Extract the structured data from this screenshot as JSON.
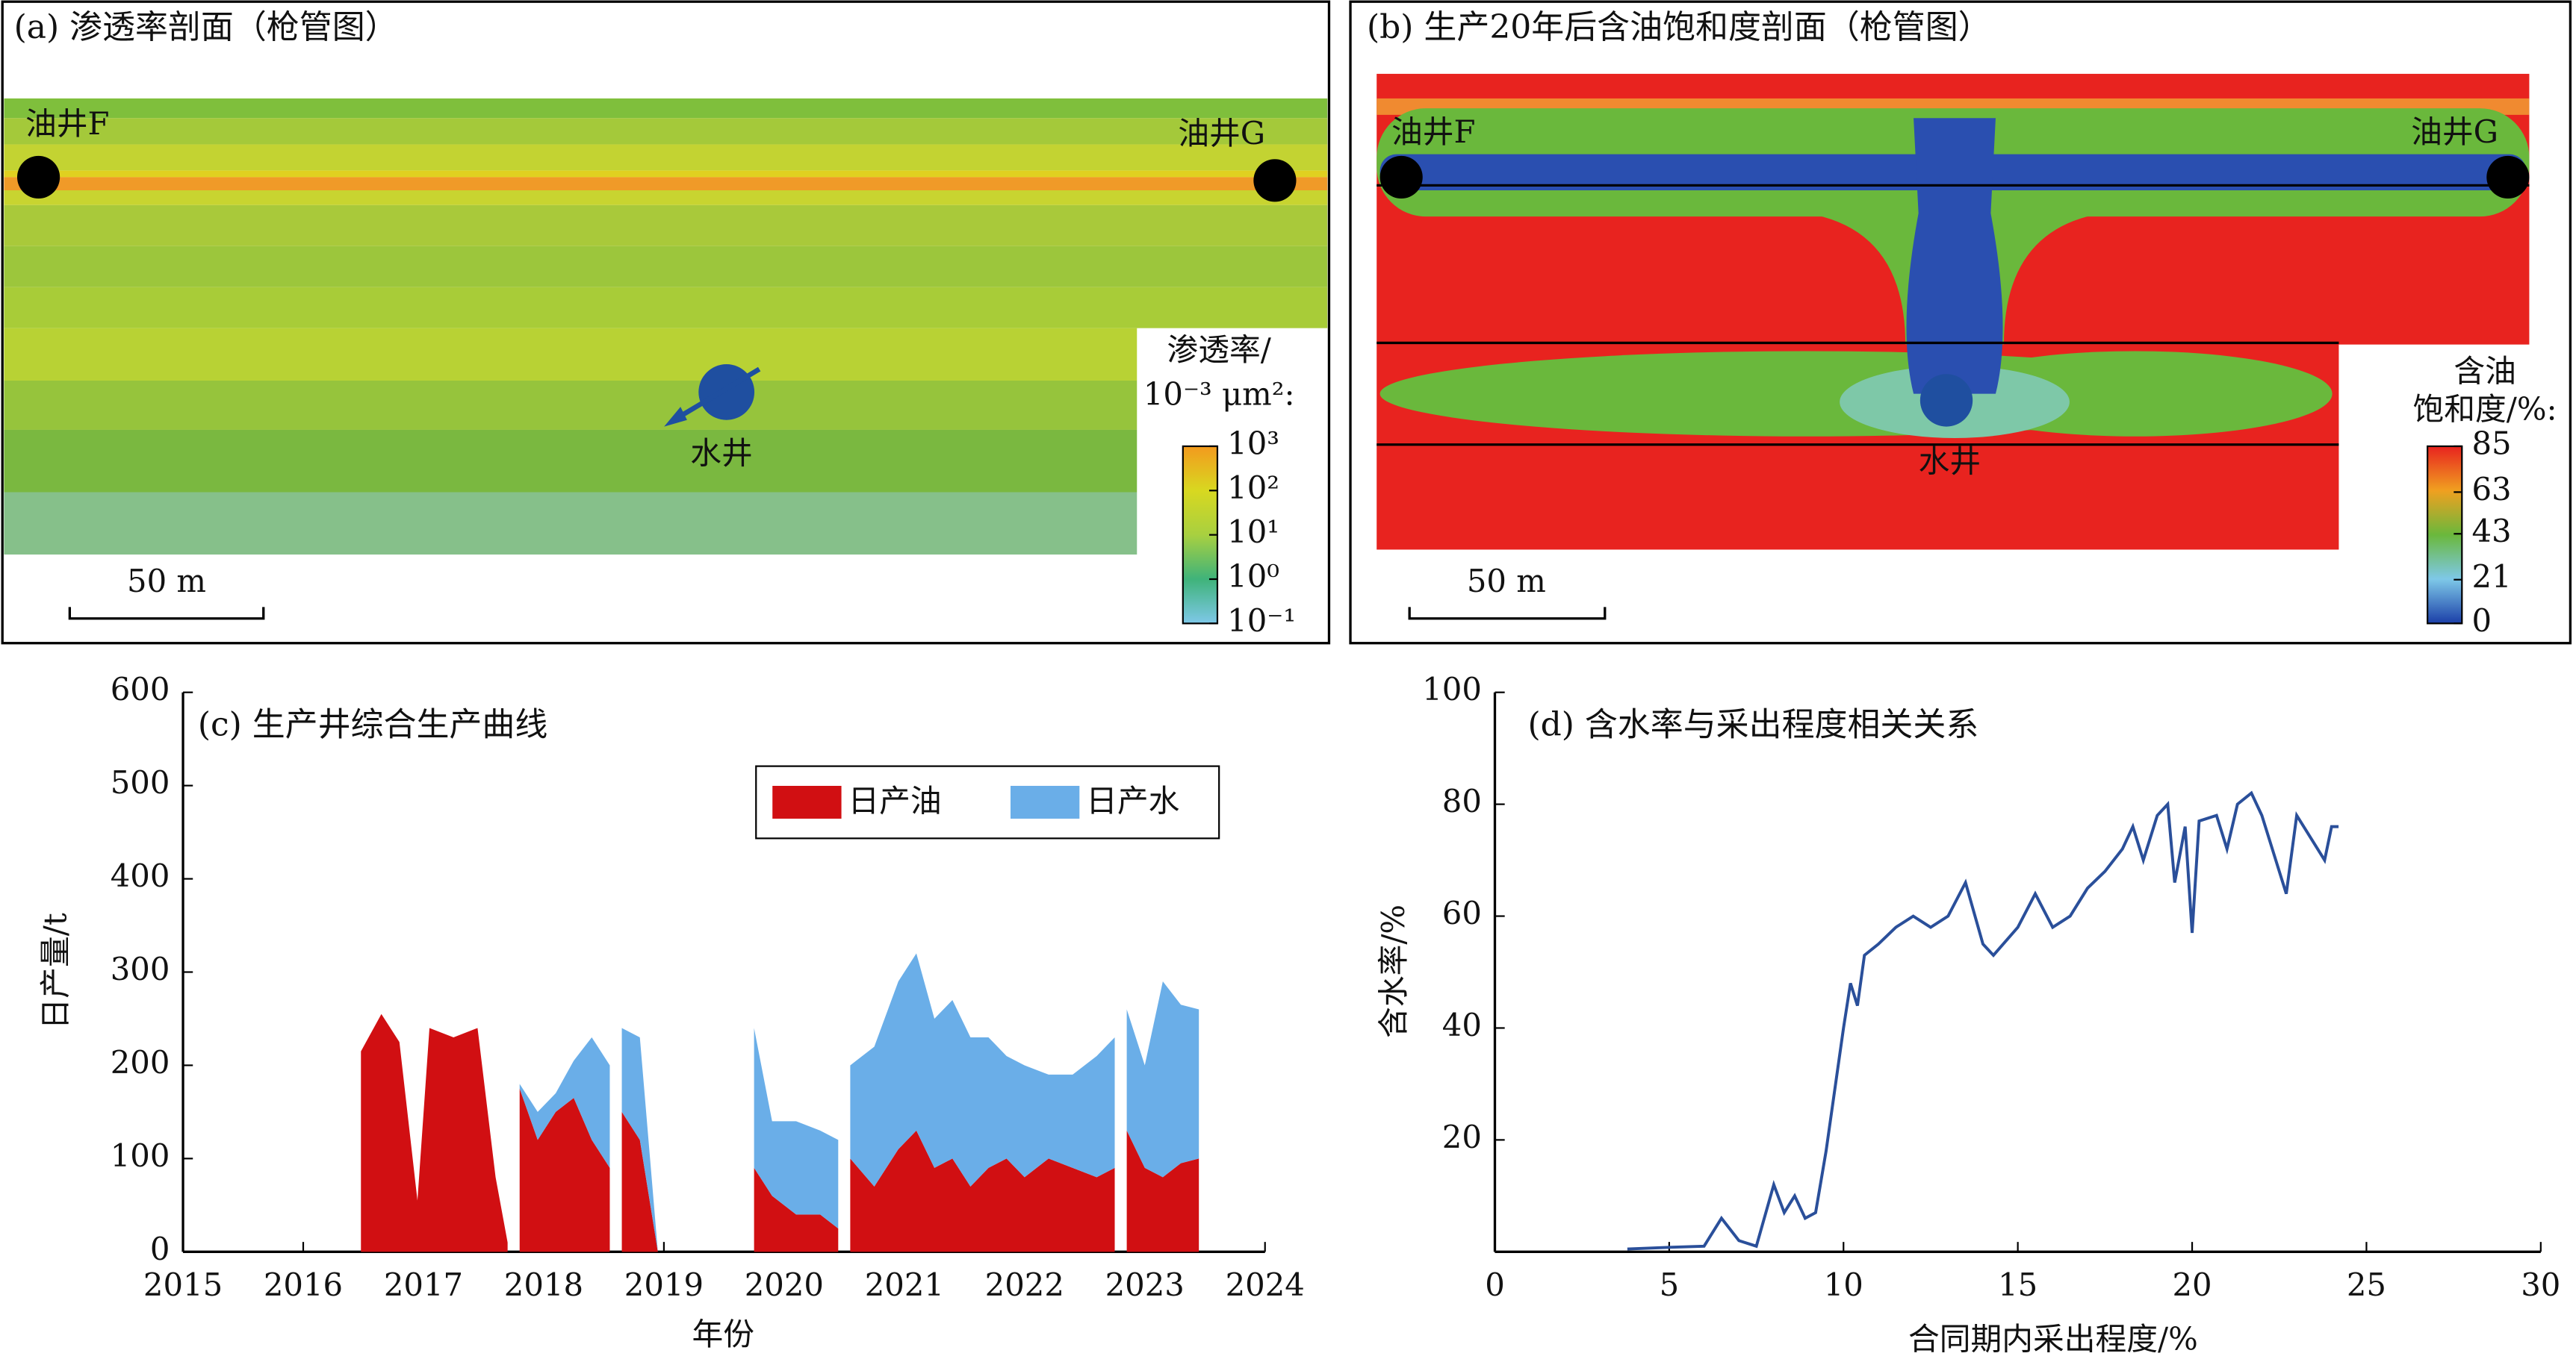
{
  "chart_data": [
    {
      "type": "section",
      "title": "(a) 渗透率剖面（枪管图）",
      "labels": {
        "well_f": "油井F",
        "well_g": "油井G",
        "water_well": "水井",
        "scale_bar": "50 m"
      },
      "colorbar": {
        "title": [
          "渗透率/",
          "10⁻³ μm²:"
        ],
        "log": true,
        "lim": [
          0.1,
          1000
        ],
        "colors": [
          "#7ec8e8",
          "#3fb37a",
          "#a8d040",
          "#d8d820",
          "#f39a1e"
        ],
        "ticks": [
          {
            "value": 1000,
            "label": "10³"
          },
          {
            "value": 100,
            "label": "10²"
          },
          {
            "value": 10,
            "label": "10¹"
          },
          {
            "value": 1,
            "label": "10⁰"
          },
          {
            "value": 0.1,
            "label": "10⁻¹"
          }
        ]
      }
    },
    {
      "type": "section",
      "title": "(b) 生产20年后含油饱和度剖面（枪管图）",
      "labels": {
        "well_f": "油井F",
        "well_g": "油井G",
        "water_well": "水井",
        "scale_bar": "50 m"
      },
      "colorbar": {
        "title": [
          "含油",
          "饱和度/%:"
        ],
        "log": false,
        "lim": [
          0,
          85
        ],
        "colors": [
          "#1b3fa8",
          "#7ec8e8",
          "#6ab83c",
          "#f0a020",
          "#e8231f"
        ],
        "ticks": [
          85,
          63,
          43,
          21,
          0
        ]
      }
    },
    {
      "type": "stacked_area",
      "title": "(c) 生产井综合生产曲线",
      "x_label": "年份",
      "y_label": "日产量/t",
      "xlim": [
        2015,
        2024
      ],
      "xticks": [
        2015,
        2016,
        2017,
        2018,
        2019,
        2020,
        2021,
        2022,
        2023,
        2024
      ],
      "ylim": [
        0,
        600
      ],
      "yticks": [
        0,
        100,
        200,
        300,
        400,
        500,
        600
      ],
      "legend": true,
      "x": [
        2016.48,
        2016.65,
        2016.8,
        2016.95,
        2017.05,
        2017.25,
        2017.45,
        2017.6,
        2017.7,
        null,
        2017.8,
        2017.95,
        2018.1,
        2018.25,
        2018.4,
        2018.55,
        null,
        2018.65,
        2018.8,
        2018.95,
        null,
        2019.75,
        2019.9,
        2020.1,
        2020.3,
        2020.45,
        null,
        2020.55,
        2020.75,
        2020.95,
        2021.1,
        2021.25,
        2021.4,
        2021.55,
        2021.7,
        2021.85,
        2022.0,
        2022.2,
        2022.4,
        2022.6,
        2022.75,
        null,
        2022.85,
        2023.0,
        2023.15,
        2023.3,
        2023.45
      ],
      "series": [
        {
          "name": "日产油",
          "color": "#d10f12",
          "values": [
            215,
            255,
            225,
            55,
            240,
            230,
            240,
            80,
            10,
            null,
            175,
            120,
            150,
            165,
            120,
            90,
            null,
            150,
            120,
            0,
            null,
            90,
            60,
            40,
            40,
            25,
            null,
            100,
            70,
            110,
            130,
            90,
            100,
            70,
            90,
            100,
            80,
            100,
            90,
            80,
            90,
            null,
            130,
            90,
            80,
            95,
            100
          ]
        },
        {
          "name": "日产水",
          "color": "#6aaee8",
          "values": [
            0,
            0,
            0,
            0,
            0,
            0,
            0,
            0,
            0,
            null,
            5,
            30,
            20,
            40,
            110,
            110,
            null,
            90,
            110,
            0,
            null,
            150,
            80,
            100,
            90,
            95,
            null,
            100,
            150,
            180,
            190,
            160,
            170,
            160,
            140,
            110,
            120,
            90,
            100,
            130,
            140,
            null,
            130,
            110,
            210,
            170,
            160
          ]
        }
      ]
    },
    {
      "type": "line",
      "title": "(d) 含水率与采出程度相关关系",
      "x_label": "合同期内采出程度/%",
      "y_label": "含水率/%",
      "xlim": [
        0,
        30
      ],
      "xticks": [
        0,
        5,
        10,
        15,
        20,
        25,
        30
      ],
      "ylim": [
        0,
        100
      ],
      "yticks": [
        20,
        40,
        60,
        80,
        100
      ],
      "x": [
        3.8,
        5,
        6,
        6.5,
        7,
        7.5,
        8,
        8.3,
        8.6,
        8.9,
        9.2,
        9.5,
        10,
        10.2,
        10.4,
        10.6,
        11,
        11.5,
        12,
        12.5,
        13,
        13.5,
        14,
        14.3,
        15,
        15.5,
        16,
        16.5,
        17,
        17.5,
        18,
        18.3,
        18.6,
        19,
        19.3,
        19.5,
        19.8,
        20,
        20.2,
        20.7,
        21,
        21.3,
        21.7,
        22,
        22.4,
        22.7,
        23,
        23.3,
        23.8,
        24,
        24.2
      ],
      "series": [
        {
          "color": "#2a4f9a",
          "values": [
            0.5,
            0.8,
            1,
            6,
            2,
            1,
            12,
            7,
            10,
            6,
            7,
            18,
            40,
            48,
            44,
            53,
            55,
            58,
            60,
            58,
            60,
            66,
            55,
            53,
            58,
            64,
            58,
            60,
            65,
            68,
            72,
            76,
            70,
            78,
            80,
            66,
            76,
            57,
            77,
            78,
            72,
            80,
            82,
            78,
            70,
            64,
            78,
            75,
            70,
            76,
            76
          ]
        }
      ]
    }
  ]
}
